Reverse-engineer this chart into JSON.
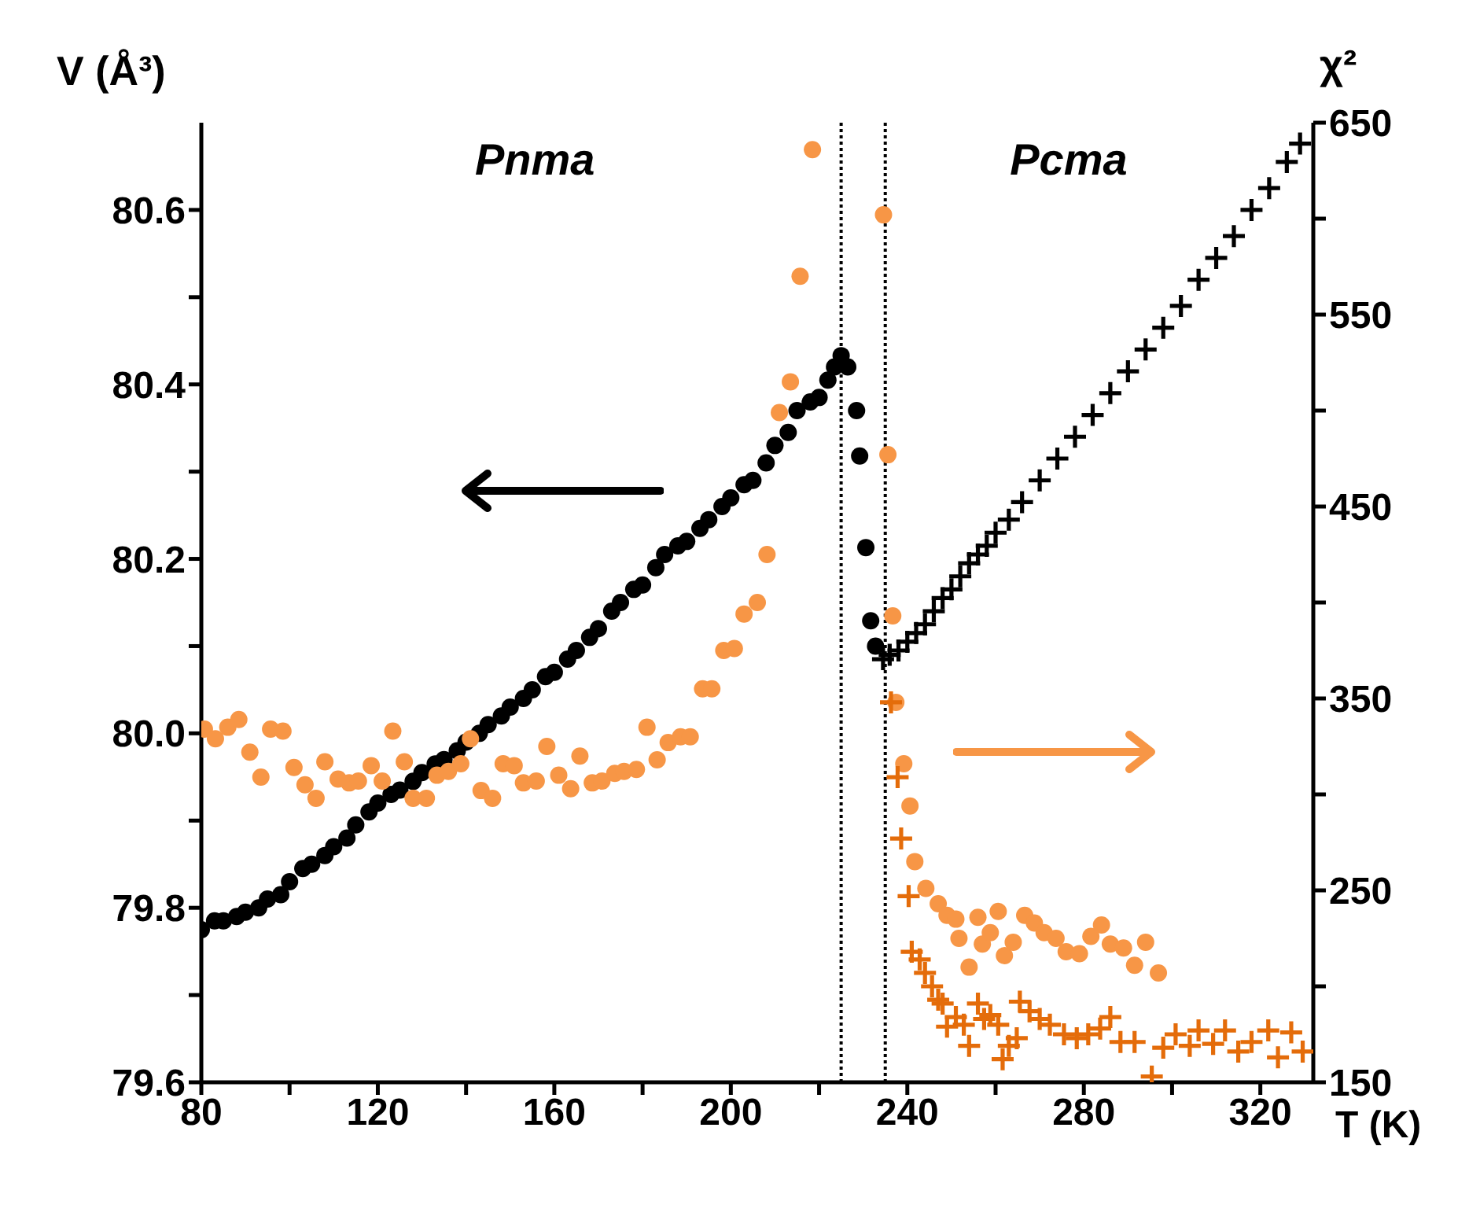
{
  "chart_data": {
    "type": "scatter",
    "xlabel": "T (K)",
    "ylabel": "V (Å³)",
    "y2label": "χ²",
    "annotations": [
      "Pnma",
      "Pcma"
    ],
    "xlim": [
      80,
      332
    ],
    "xticks": [
      80,
      {
        "value": 100,
        "label": null
      },
      120,
      {
        "value": 140,
        "label": null
      },
      160,
      {
        "value": 180,
        "label": null
      },
      200,
      {
        "value": 220,
        "label": null
      },
      240,
      {
        "value": 260,
        "label": null
      },
      280,
      {
        "value": 300,
        "label": null
      },
      320
    ],
    "ylim": [
      79.6,
      80.7
    ],
    "yticks": [
      79.6,
      {
        "value": 79.7,
        "label": null
      },
      79.8,
      {
        "value": 79.9,
        "label": null
      },
      {
        "value": 80,
        "label": "80.0"
      },
      {
        "value": 80.1,
        "label": null
      },
      80.2,
      {
        "value": 80.3,
        "label": null
      },
      80.4,
      {
        "value": 80.5,
        "label": null
      },
      80.6
    ],
    "y2lim": [
      150,
      650
    ],
    "y2ticks": [
      150,
      {
        "value": 200,
        "label": null
      },
      250,
      {
        "value": 300,
        "label": null
      },
      350,
      {
        "value": 400,
        "label": null
      },
      450,
      {
        "value": 500,
        "label": null
      },
      550,
      {
        "value": 600,
        "label": null
      },
      650
    ],
    "ref_lines": [
      {
        "axis": "x",
        "value": 225,
        "label": null,
        "color": "#000000",
        "line_style": "dotted"
      },
      {
        "axis": "x",
        "value": 235,
        "label": null,
        "color": "#000000",
        "line_style": "dotted"
      }
    ],
    "series": [
      {
        "marker": "circle",
        "color": "#000000",
        "x": [
          80,
          83,
          85,
          88,
          90,
          93,
          95,
          98,
          100,
          103,
          105,
          108,
          110,
          113,
          115,
          118,
          120,
          123,
          125,
          128,
          130,
          133,
          135,
          138,
          140,
          143,
          145,
          148,
          150,
          153,
          155,
          158,
          160,
          163,
          165,
          168,
          170,
          173,
          175,
          178,
          180,
          183,
          185,
          188,
          190,
          193,
          195,
          198,
          200,
          203,
          205,
          208,
          210,
          213,
          215,
          218,
          220,
          222,
          223.5,
          225,
          226.5,
          228.5,
          229.2,
          230.6,
          231.7,
          232.8
        ],
        "values": [
          79.775,
          79.785,
          79.785,
          79.79,
          79.795,
          79.8,
          79.81,
          79.815,
          79.83,
          79.845,
          79.85,
          79.86,
          79.87,
          79.88,
          79.895,
          79.91,
          79.92,
          79.93,
          79.935,
          79.945,
          79.955,
          79.965,
          79.97,
          79.98,
          79.99,
          80.0,
          80.01,
          80.02,
          80.03,
          80.04,
          80.05,
          80.065,
          80.07,
          80.085,
          80.095,
          80.11,
          80.12,
          80.14,
          80.15,
          80.165,
          80.17,
          80.19,
          80.205,
          80.215,
          80.22,
          80.235,
          80.245,
          80.26,
          80.27,
          80.285,
          80.29,
          80.31,
          80.33,
          80.345,
          80.37,
          80.38,
          80.385,
          80.405,
          80.42,
          80.433,
          80.42,
          80.37,
          80.318,
          80.213,
          80.129,
          80.1
        ]
      },
      {
        "marker": "cross",
        "color": "#000000",
        "x": [
          234.5,
          236,
          238,
          240,
          242,
          244,
          246,
          248,
          250,
          252,
          254,
          256,
          258,
          260,
          263,
          266,
          270,
          274,
          278,
          282,
          286,
          290,
          294,
          298,
          302,
          306,
          310,
          314,
          318,
          322,
          326,
          329
        ],
        "values": [
          80.085,
          80.09,
          80.095,
          80.105,
          80.115,
          80.125,
          80.14,
          80.155,
          80.165,
          80.18,
          80.195,
          80.205,
          80.215,
          80.23,
          80.245,
          80.265,
          80.29,
          80.315,
          80.34,
          80.365,
          80.39,
          80.415,
          80.44,
          80.465,
          80.49,
          80.52,
          80.545,
          80.57,
          80.6,
          80.625,
          80.655,
          80.676
        ]
      },
      {
        "axis": "y2",
        "marker": "circle",
        "color": "#f79646",
        "x": [
          80.7,
          83.2,
          86,
          88.5,
          91,
          93.5,
          95.7,
          98.5,
          101,
          103.5,
          106,
          108,
          111,
          113.5,
          115.6,
          118.5,
          121,
          123.4,
          126,
          128,
          131,
          133.4,
          136,
          138.8,
          141,
          143.4,
          146,
          148.4,
          150.9,
          153,
          155.9,
          158.3,
          161,
          163.7,
          165.8,
          168.6,
          170.8,
          173.7,
          175.8,
          178.6,
          181,
          183.3,
          185.8,
          188.6,
          190.8,
          193.6,
          195.7,
          198.4,
          200.8,
          203,
          206,
          208.2,
          211,
          213.5,
          215.7,
          218.5,
          234.6,
          235.6,
          236.7,
          237.4,
          239.2,
          240.6,
          241.7,
          244.2,
          247,
          249,
          251,
          251.7,
          254,
          256,
          257,
          258.8,
          260.6,
          262,
          264,
          266.6,
          268.8,
          271,
          273.7,
          276,
          279,
          281.6,
          284,
          286,
          289,
          291.5,
          294,
          296.9
        ],
        "values": [
          334,
          329,
          335,
          339,
          322,
          309,
          334,
          333,
          314,
          305,
          298,
          317,
          308,
          306,
          307,
          315,
          307,
          333,
          317,
          298,
          298,
          310,
          312,
          316,
          329,
          302,
          298,
          316,
          315,
          306,
          307,
          325,
          310,
          303,
          320,
          306,
          307,
          311,
          312,
          313,
          335,
          318,
          327,
          330,
          330,
          355,
          355,
          375,
          376,
          394,
          400,
          425,
          499,
          515,
          570,
          636,
          602,
          477,
          393,
          348,
          316,
          294,
          265,
          251,
          243,
          237,
          235,
          225,
          210,
          236,
          222,
          228,
          239,
          216,
          223,
          237,
          233,
          228,
          225,
          218,
          217,
          226,
          232,
          222,
          220,
          211,
          223,
          207
        ]
      },
      {
        "axis": "y2",
        "marker": "cross",
        "color": "#e46c0a",
        "x": [
          236.3,
          237.8,
          238.6,
          240.3,
          241,
          242.8,
          244,
          245.6,
          247,
          248,
          249,
          251,
          252.8,
          254,
          256,
          257.4,
          258.8,
          260.6,
          261.6,
          263,
          264.8,
          265.5,
          267.7,
          270,
          272.3,
          275.5,
          278.4,
          281,
          283.7,
          286,
          288.3,
          291.5,
          295.4,
          298,
          300.8,
          304,
          306,
          309.3,
          312,
          315,
          318,
          321.8,
          324,
          327,
          329.6
        ],
        "values": [
          348,
          309,
          277,
          247,
          218,
          214,
          207,
          200,
          193,
          191,
          179,
          184,
          180,
          169,
          191,
          183,
          185,
          180,
          162,
          169,
          173,
          192,
          187,
          183,
          180,
          175,
          173,
          175,
          178,
          184,
          171,
          171,
          153,
          168,
          175,
          169,
          177,
          170,
          177,
          166,
          171,
          177,
          163,
          176,
          166
        ]
      }
    ]
  }
}
